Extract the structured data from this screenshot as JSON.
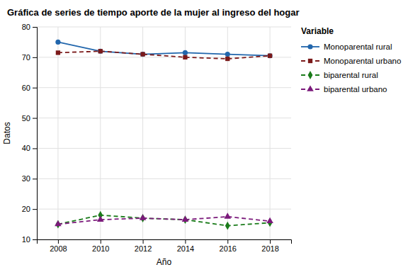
{
  "chart_data": {
    "type": "line",
    "title": "Gráfica de series de tiempo aporte de la mujer al ingreso del hogar",
    "xlabel": "Año",
    "ylabel": "Datos",
    "legend_title": "Variable",
    "x": [
      2008,
      2010,
      2012,
      2014,
      2016,
      2018
    ],
    "series": [
      {
        "name": "Monoparental rural",
        "color": "#2166AC",
        "marker": "circle",
        "line_style": "solid",
        "values": [
          75.0,
          72.0,
          71.0,
          71.5,
          71.0,
          70.5
        ]
      },
      {
        "name": "Monoparental urbano",
        "color": "#7B1A1A",
        "marker": "square",
        "line_style": "dashed",
        "values": [
          71.5,
          72.0,
          71.0,
          70.0,
          69.5,
          70.5
        ]
      },
      {
        "name": "biparental rural",
        "color": "#1A7B1A",
        "marker": "diamond",
        "line_style": "dashed",
        "values": [
          15.0,
          18.0,
          17.0,
          16.5,
          14.5,
          15.5
        ]
      },
      {
        "name": "biparental urbano",
        "color": "#7B1A7B",
        "marker": "triangle",
        "line_style": "dashed",
        "values": [
          15.0,
          16.5,
          17.0,
          16.5,
          17.5,
          16.0
        ]
      }
    ],
    "xlim": [
      2007,
      2019
    ],
    "xticks": [
      2008,
      2010,
      2012,
      2014,
      2016,
      2018
    ],
    "ylim": [
      10,
      80
    ],
    "yticks": [
      10,
      20,
      30,
      40,
      50,
      60,
      70,
      80
    ],
    "grid": true,
    "legend": "right"
  }
}
